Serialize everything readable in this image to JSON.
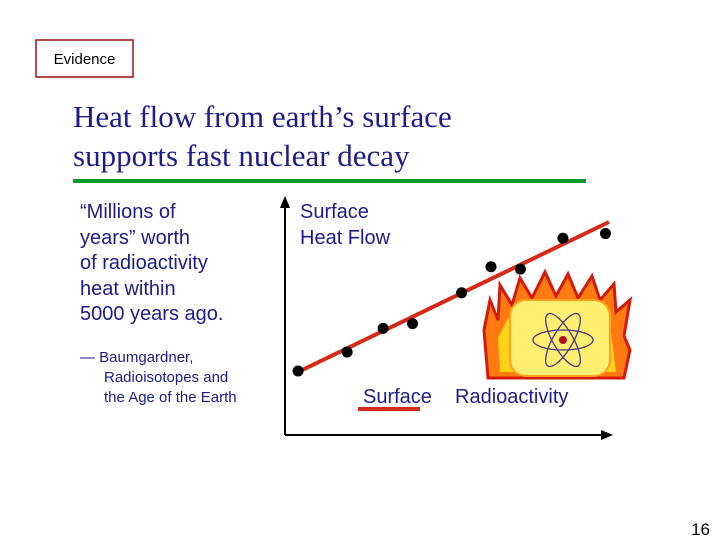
{
  "badge": "Evidence",
  "title": [
    "Heat flow from earth’s surface",
    "supports fast nuclear decay"
  ],
  "quote": [
    "“Millions of",
    "years” worth",
    "of radioactivity",
    "heat within",
    "5000 years ago."
  ],
  "citation": [
    "— Baumgardner,",
    "Radioisotopes and",
    "the Age of the Earth"
  ],
  "chart_data": {
    "type": "scatter",
    "y_label": [
      "Surface",
      "Heat Flow"
    ],
    "x_label": [
      "Surface",
      "Radioactivity"
    ],
    "x": [
      0.4,
      1.9,
      3.0,
      3.9,
      5.4,
      6.3,
      7.2,
      8.5,
      9.8
    ],
    "y": [
      2.7,
      3.5,
      4.5,
      4.7,
      6.0,
      7.1,
      7.0,
      8.3,
      8.5
    ],
    "xlim": [
      0,
      10
    ],
    "ylim": [
      0,
      10
    ],
    "color": "#000000"
  },
  "page_number": "16"
}
